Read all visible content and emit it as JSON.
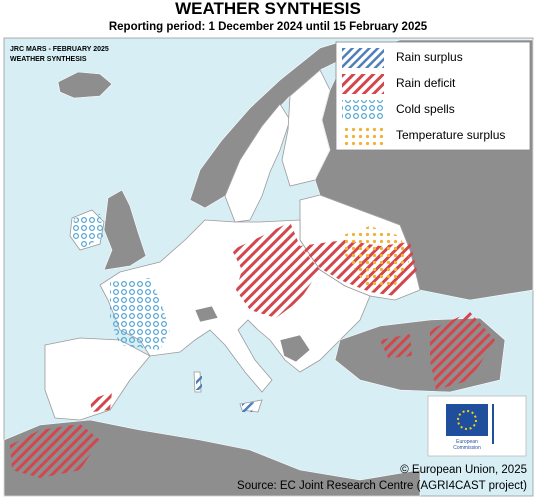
{
  "header": {
    "title": "WEATHER SYNTHESIS",
    "subtitle": "Reporting period: 1 December 2024 until 15 February 2025"
  },
  "map": {
    "label_lines": [
      "JRC MARS - FEBRUARY 2025",
      "WEATHER SYNTHESIS"
    ]
  },
  "legend": {
    "items": [
      "Rain surplus",
      "Rain deficit",
      "Cold spells",
      "Temperature surplus"
    ]
  },
  "logo": {
    "lines": [
      "European",
      "Commission"
    ]
  },
  "footer": {
    "copyright": "© European Union, 2025",
    "source": "Source: EC Joint Research Centre (AGRI4CAST project)"
  }
}
